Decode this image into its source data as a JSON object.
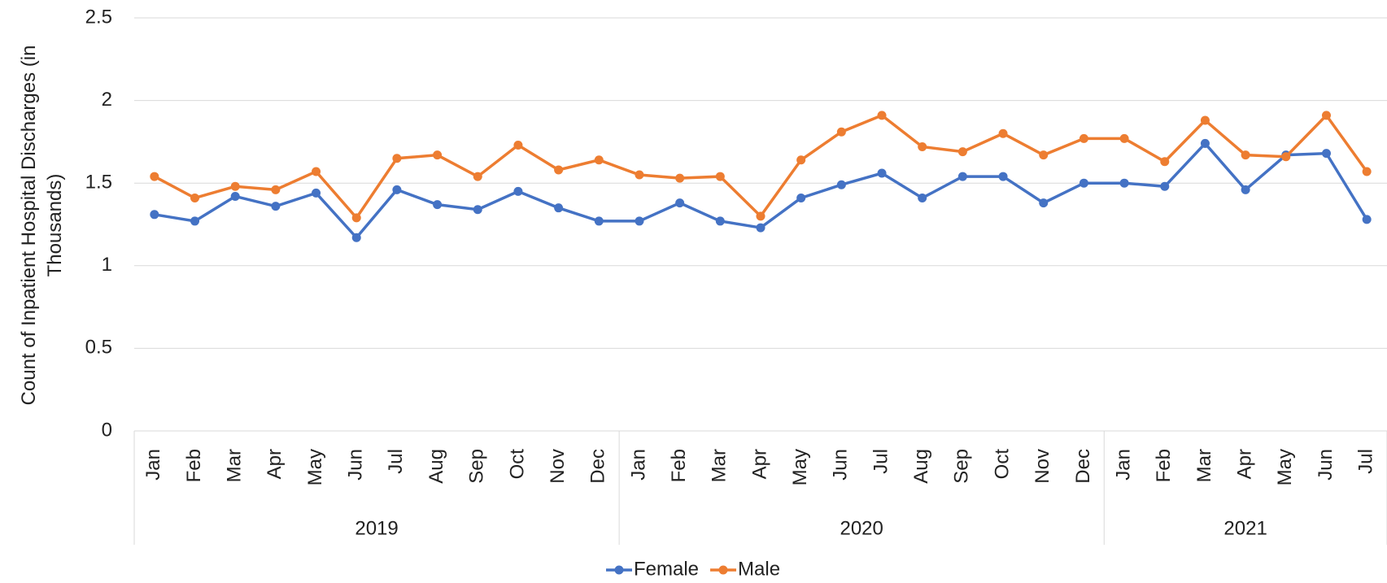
{
  "chart_data": {
    "type": "line",
    "y_label": "Count of Inpatient Hospital Discharges (in Thousands)",
    "groups": [
      {
        "name": "2019",
        "categories": [
          "Jan",
          "Feb",
          "Mar",
          "Apr",
          "May",
          "Jun",
          "Jul",
          "Aug",
          "Sep",
          "Oct",
          "Nov",
          "Dec"
        ]
      },
      {
        "name": "2020",
        "categories": [
          "Jan",
          "Feb",
          "Mar",
          "Apr",
          "May",
          "Jun",
          "Jul",
          "Aug",
          "Sep",
          "Oct",
          "Nov",
          "Dec"
        ]
      },
      {
        "name": "2021",
        "categories": [
          "Jan",
          "Feb",
          "Mar",
          "Apr",
          "May",
          "Jun",
          "Jul"
        ]
      }
    ],
    "series": [
      {
        "name": "Female",
        "color": "#4472c4",
        "values": [
          1.31,
          1.27,
          1.42,
          1.36,
          1.44,
          1.17,
          1.46,
          1.37,
          1.34,
          1.45,
          1.35,
          1.27,
          1.27,
          1.38,
          1.27,
          1.23,
          1.41,
          1.49,
          1.56,
          1.41,
          1.54,
          1.54,
          1.38,
          1.5,
          1.5,
          1.48,
          1.74,
          1.46,
          1.67,
          1.68,
          1.28
        ]
      },
      {
        "name": "Male",
        "color": "#ed7d31",
        "values": [
          1.54,
          1.41,
          1.48,
          1.46,
          1.57,
          1.29,
          1.65,
          1.67,
          1.54,
          1.73,
          1.58,
          1.64,
          1.55,
          1.53,
          1.54,
          1.3,
          1.64,
          1.81,
          1.91,
          1.72,
          1.69,
          1.8,
          1.67,
          1.77,
          1.77,
          1.63,
          1.88,
          1.67,
          1.66,
          1.91,
          1.57
        ]
      }
    ],
    "ylim": [
      0,
      2.5
    ],
    "yticks": [
      0,
      0.5,
      1,
      1.5,
      2,
      2.5
    ],
    "grid": true,
    "legend": "bottom"
  }
}
